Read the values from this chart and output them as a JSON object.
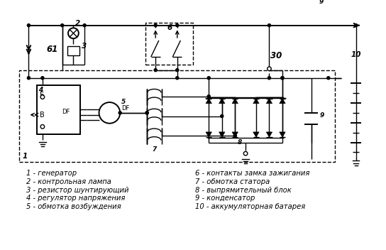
{
  "bg_color": "#ffffff",
  "font_size_label": 7.2,
  "font_size_num": 8.5,
  "legend_left": [
    "1 - генератор",
    "2 - контрольная лампа",
    "3 - резистор шунтирующий",
    "4 - регулятор напряжения",
    "5 - обмотка возбуждения"
  ],
  "legend_right": [
    "6 - контакты замка зажигания",
    "7 - обмотка статора",
    "8 - выпрямительный блок",
    "9 - конденсатор",
    "10 - аккумуляторная батарея"
  ]
}
